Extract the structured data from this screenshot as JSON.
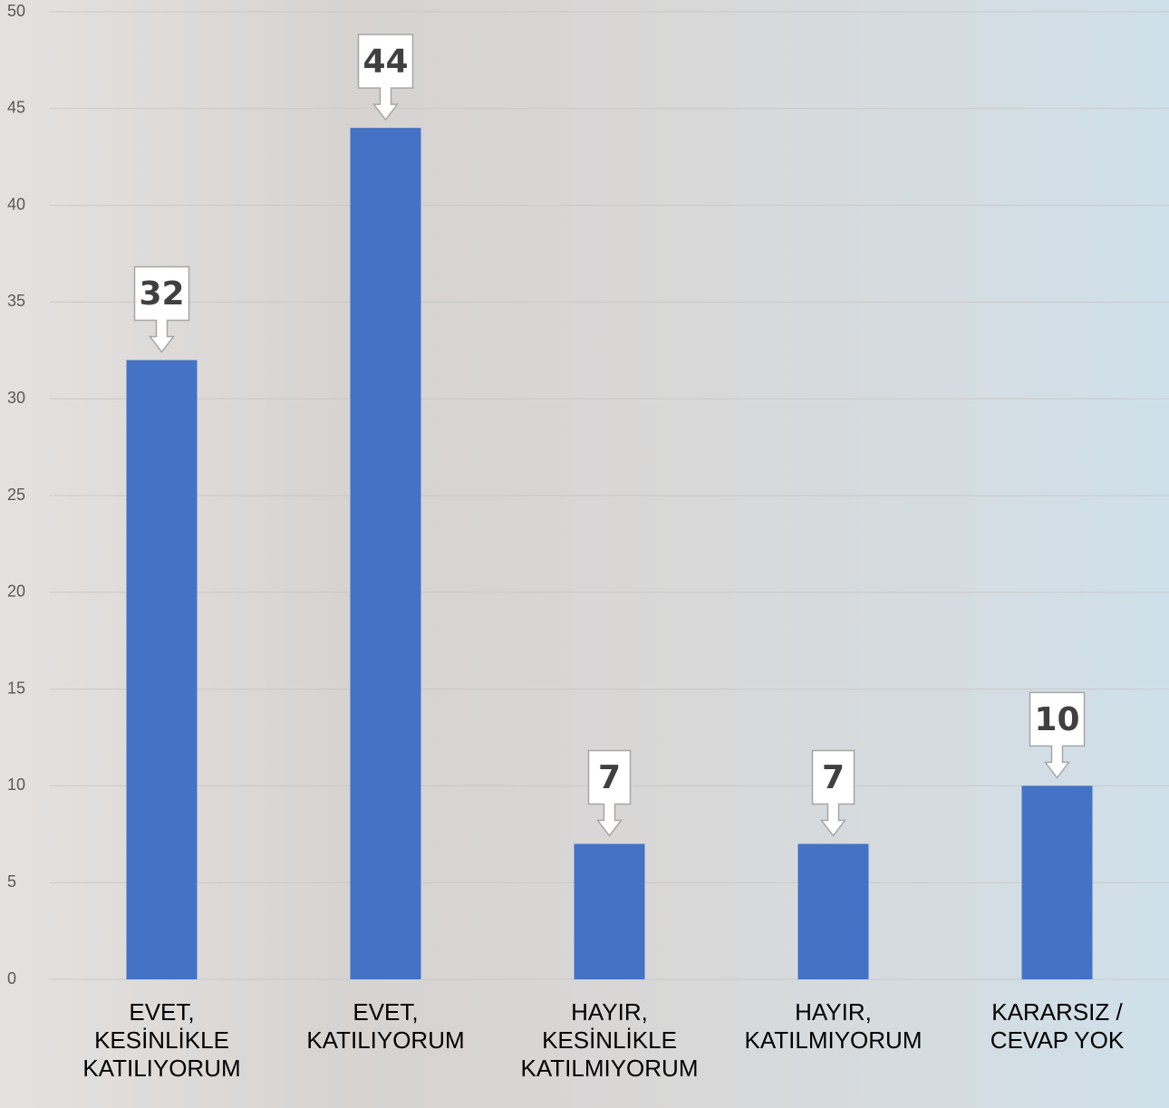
{
  "chart_data": {
    "type": "bar",
    "categories": [
      "EVET,\nKESİNLİKLE\nKATILIYORUM",
      "EVET,\nKATILIYORUM",
      "HAYIR,\nKESİNLİKLE\nKATILMIYORUM",
      "HAYIR,\nKATILMIYORUM",
      "KARARSIZ /\nCEVAP YOK"
    ],
    "values": [
      32,
      44,
      7,
      7,
      10
    ],
    "color": "#4472c4",
    "ylim": [
      0,
      50
    ],
    "yticks": [
      0,
      5,
      10,
      15,
      20,
      25,
      30,
      35,
      40,
      45,
      50
    ],
    "grid": true
  }
}
